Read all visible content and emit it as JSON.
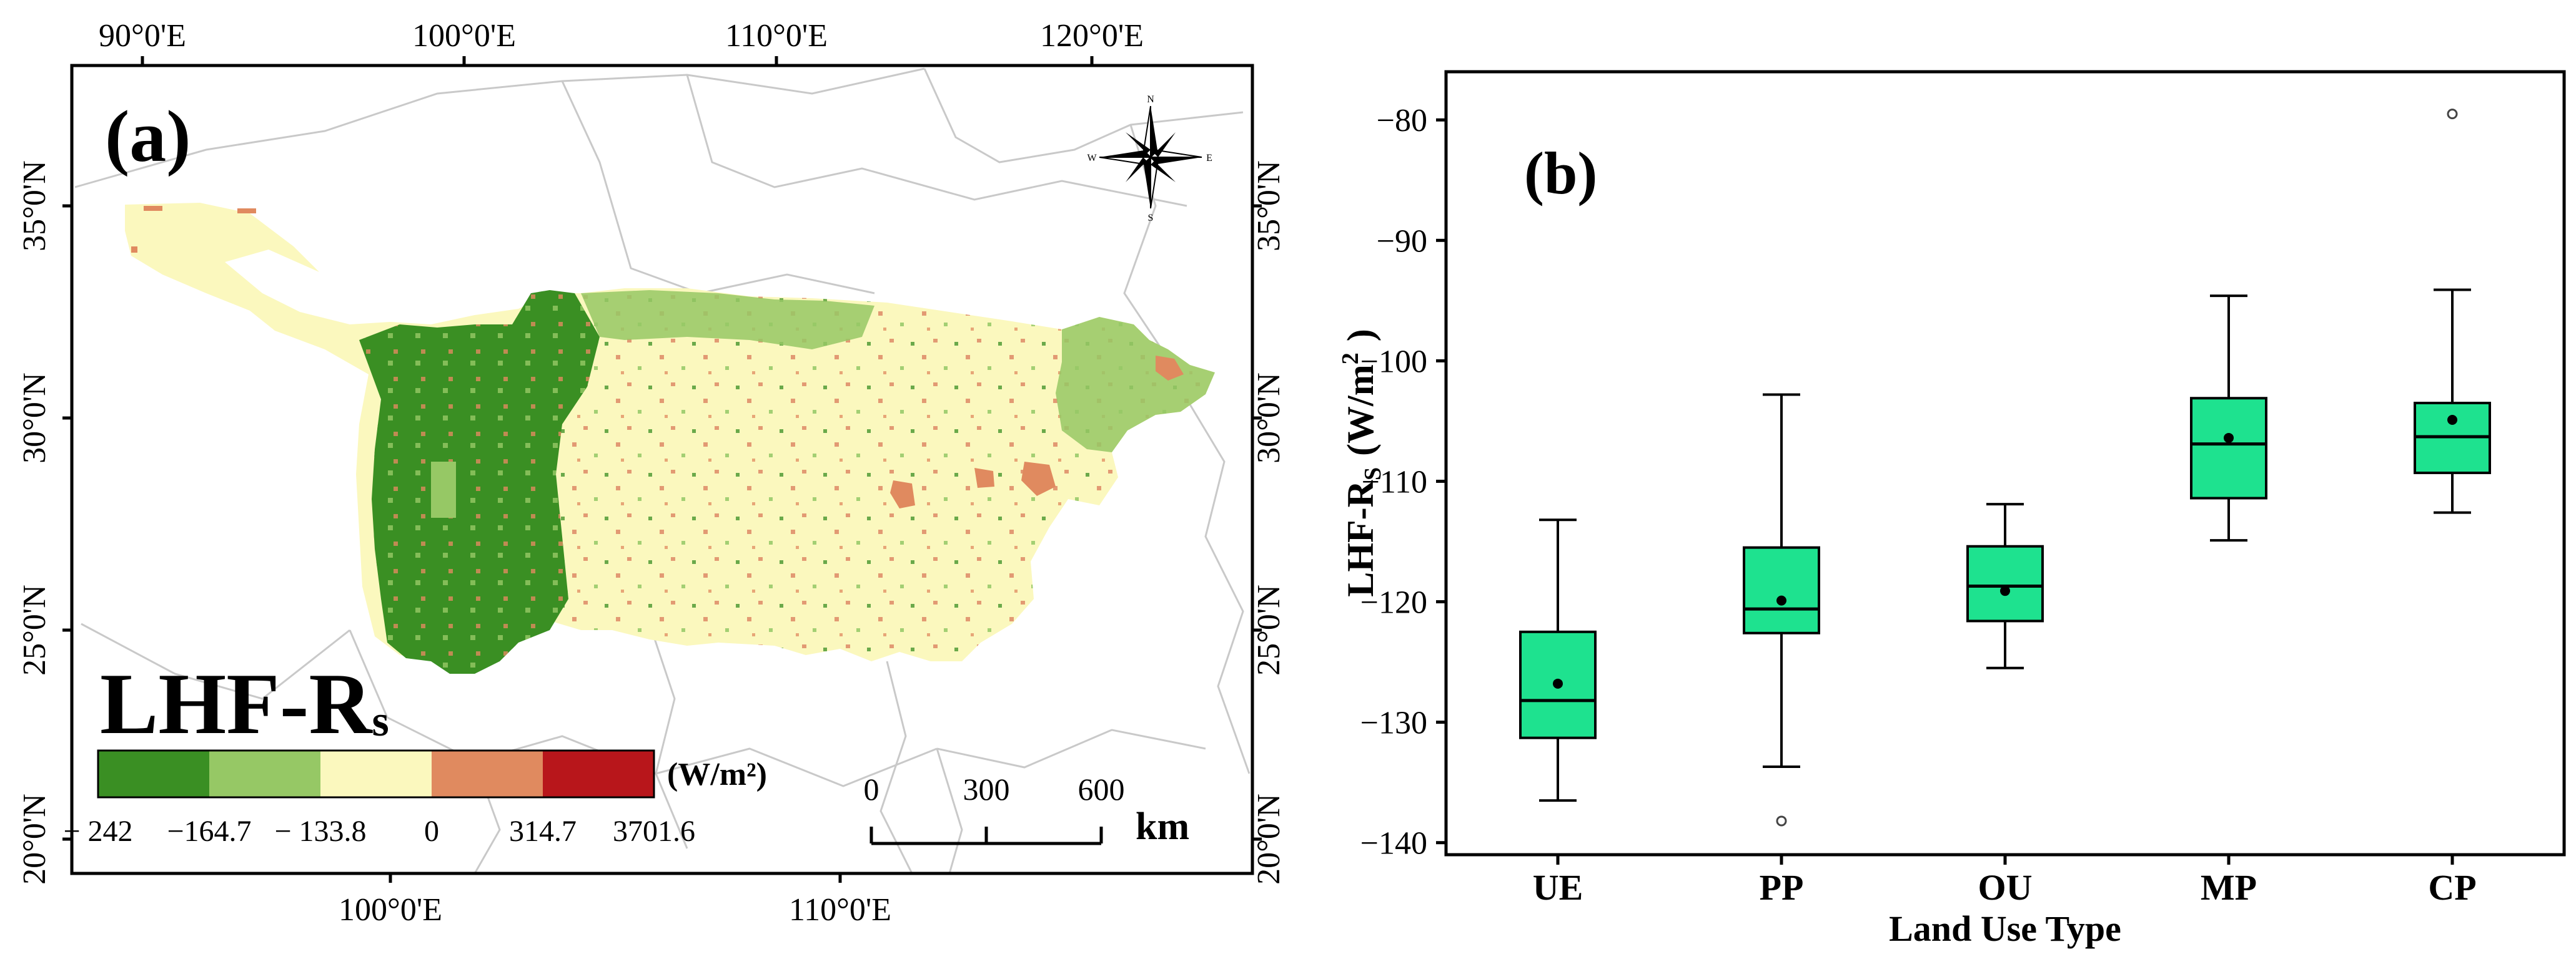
{
  "panel_a": {
    "label": "(a)",
    "legend_title_main": "LHF-R",
    "legend_title_sub": "s",
    "unit": "(W/m²)",
    "lon_ticks_top": [
      "90°0'E",
      "100°0'E",
      "110°0'E",
      "120°0'E"
    ],
    "lon_ticks_bottom": [
      "100°0'E",
      "110°0'E"
    ],
    "lat_ticks_left": [
      "35°0'N",
      "30°0'N",
      "25°0'N",
      "20°0'N"
    ],
    "lat_ticks_right": [
      "35°0'N",
      "30°0'N",
      "25°0'N",
      "20°0'N"
    ],
    "legend_colors": [
      "#3a8f23",
      "#96c865",
      "#fbf8be",
      "#e08a5f",
      "#b8161b"
    ],
    "legend_breaks": [
      "− 242",
      "−164.7",
      "− 133.8",
      "0",
      "314.7",
      "3701.6"
    ],
    "scalebar": {
      "labels": [
        "0",
        "300",
        "600"
      ],
      "unit": "km"
    },
    "compass": {
      "n": "N",
      "s": "S",
      "e": "E",
      "w": "W"
    }
  },
  "chart_data": {
    "type": "box",
    "label": "(b)",
    "xlabel": "Land Use Type",
    "ylabel_main": "LHF-R",
    "ylabel_sub": "S",
    "ylabel_unit": "(W/m",
    "ylabel_sup": "2",
    "ylabel_close": ")",
    "ylim": [
      -141,
      -76
    ],
    "yticks": [
      -140,
      -130,
      -120,
      -110,
      -100,
      -90,
      -80
    ],
    "ytick_labels": [
      "−140",
      "−130",
      "−120",
      "−110",
      "−100",
      "−90",
      "−80"
    ],
    "box_color": "#1ee28f",
    "categories": [
      "UE",
      "PP",
      "OU",
      "MP",
      "CP"
    ],
    "boxes": [
      {
        "category": "UE",
        "whisker_low": -136.5,
        "q1": -131.3,
        "median": -128.2,
        "q3": -122.5,
        "whisker_high": -113.2,
        "mean": -126.8,
        "outliers": []
      },
      {
        "category": "PP",
        "whisker_low": -133.7,
        "q1": -122.6,
        "median": -120.6,
        "q3": -115.5,
        "whisker_high": -102.8,
        "mean": -119.9,
        "outliers": [
          -138.2
        ]
      },
      {
        "category": "OU",
        "whisker_low": -125.5,
        "q1": -121.6,
        "median": -118.7,
        "q3": -115.4,
        "whisker_high": -111.9,
        "mean": -119.1,
        "outliers": []
      },
      {
        "category": "MP",
        "whisker_low": -114.9,
        "q1": -111.4,
        "median": -106.9,
        "q3": -103.1,
        "whisker_high": -94.6,
        "mean": -106.4,
        "outliers": []
      },
      {
        "category": "CP",
        "whisker_low": -112.6,
        "q1": -109.3,
        "median": -106.3,
        "q3": -103.5,
        "whisker_high": -94.1,
        "mean": -104.9,
        "outliers": [
          -79.5
        ]
      }
    ]
  }
}
